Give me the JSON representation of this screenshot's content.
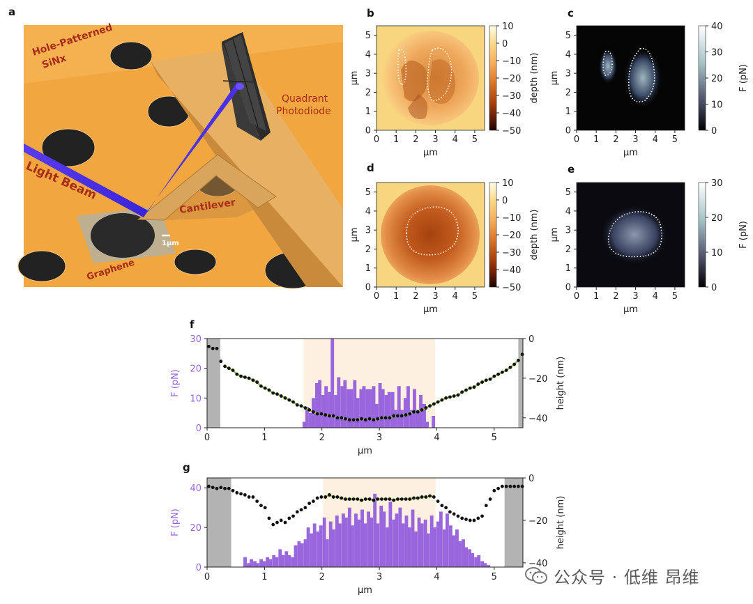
{
  "panels": {
    "a": {
      "letter": "a",
      "labels": {
        "substrate": [
          "Hole-Patterned",
          "SiNx"
        ],
        "photodiode": [
          "Quadrant",
          "Photodiode"
        ],
        "beam": "Light Beam",
        "cantilever": "Cantilever",
        "graphene": "Graphene",
        "scale": "1μm"
      }
    },
    "b": {
      "letter": "b",
      "colorbar_label": "depth (nm)",
      "colorbar_ticks": [
        "10",
        "0",
        "−10",
        "−20",
        "−30",
        "−40",
        "−50"
      ]
    },
    "c": {
      "letter": "c",
      "colorbar_label": "F (pN)",
      "colorbar_ticks": [
        "40",
        "30",
        "20",
        "10",
        "0"
      ]
    },
    "d": {
      "letter": "d",
      "colorbar_label": "depth (nm)",
      "colorbar_ticks": [
        "10",
        "0",
        "−10",
        "−20",
        "−30",
        "−40",
        "−50"
      ]
    },
    "e": {
      "letter": "e",
      "colorbar_label": "F (pN)",
      "colorbar_ticks": [
        "30",
        "20",
        "10",
        "0"
      ]
    },
    "f": {
      "letter": "f"
    },
    "g": {
      "letter": "g"
    }
  },
  "map_axes": {
    "unit": "μm",
    "ticks": [
      "0",
      "1",
      "2",
      "3",
      "4",
      "5"
    ]
  },
  "colors": {
    "force_purple": "#9966dd",
    "shade": "#fdf0e0",
    "edge_gray": "#b3b3b3",
    "fit_green": "#8bc34a"
  },
  "chart_data": [
    {
      "type": "bar",
      "panel": "f",
      "xlabel": "μm",
      "ylabel": "F (pN)",
      "y2label": "height (nm)",
      "xlim": [
        0,
        5.5
      ],
      "ylim": [
        0,
        30
      ],
      "y2lim": [
        -45,
        0
      ],
      "xticks": [
        0,
        1,
        2,
        3,
        4,
        5
      ],
      "yticks": [
        0,
        10,
        20,
        30
      ],
      "y2ticks": [
        0,
        -20,
        -40
      ],
      "shaded_region": [
        1.68,
        3.97
      ],
      "gray_edges": [
        [
          0,
          0.23
        ],
        [
          5.42,
          5.5
        ]
      ],
      "bar_width": 0.0555,
      "force_bars": {
        "x": [
          1.69,
          1.74,
          1.8,
          1.85,
          1.91,
          1.96,
          2.02,
          2.07,
          2.13,
          2.18,
          2.24,
          2.29,
          2.35,
          2.4,
          2.46,
          2.51,
          2.57,
          2.62,
          2.68,
          2.73,
          2.79,
          2.84,
          2.9,
          2.95,
          3.01,
          3.06,
          3.12,
          3.17,
          3.23,
          3.28,
          3.34,
          3.39,
          3.45,
          3.5,
          3.56,
          3.61,
          3.67,
          3.72,
          3.78,
          3.83,
          3.89,
          3.94
        ],
        "values": [
          2,
          7,
          5,
          10,
          15,
          16,
          11,
          14,
          12,
          30,
          11,
          17,
          14,
          16,
          13,
          13,
          16,
          10,
          13,
          14,
          13,
          13,
          14,
          8,
          15,
          13,
          11,
          12,
          12,
          6,
          14,
          6,
          10,
          14,
          6,
          13,
          6,
          11,
          8,
          2,
          0,
          4
        ]
      },
      "height_points": {
        "x": [
          0.03,
          0.1,
          0.17,
          0.24,
          0.31,
          0.38,
          0.45,
          0.52,
          0.59,
          0.66,
          0.73,
          0.8,
          0.87,
          0.94,
          1.01,
          1.08,
          1.15,
          1.22,
          1.29,
          1.36,
          1.43,
          1.5,
          1.57,
          1.64,
          1.71,
          1.78,
          1.85,
          1.92,
          1.99,
          2.06,
          2.13,
          2.2,
          2.27,
          2.34,
          2.41,
          2.48,
          2.55,
          2.62,
          2.69,
          2.76,
          2.83,
          2.9,
          2.97,
          3.04,
          3.11,
          3.18,
          3.25,
          3.32,
          3.39,
          3.46,
          3.53,
          3.6,
          3.67,
          3.74,
          3.81,
          3.88,
          3.95,
          4.02,
          4.09,
          4.16,
          4.23,
          4.3,
          4.37,
          4.44,
          4.51,
          4.58,
          4.65,
          4.72,
          4.79,
          4.86,
          4.93,
          5.0,
          5.07,
          5.14,
          5.21,
          5.28,
          5.35,
          5.42,
          5.49
        ],
        "values": [
          -4,
          -5,
          -5,
          -11.5,
          -14,
          -15,
          -16,
          -18,
          -19,
          -19.5,
          -20,
          -21,
          -22,
          -24,
          -25,
          -26,
          -27.5,
          -28,
          -29,
          -30,
          -31,
          -32,
          -33.5,
          -34,
          -35,
          -36,
          -37,
          -38,
          -38,
          -38.5,
          -39,
          -39,
          -40,
          -40,
          -40.5,
          -41,
          -41,
          -41,
          -40.5,
          -41,
          -40.5,
          -41,
          -40.5,
          -40,
          -40,
          -40,
          -39,
          -39,
          -39,
          -38.5,
          -38,
          -37,
          -37,
          -36,
          -35,
          -34,
          -33,
          -32,
          -31,
          -30,
          -29.5,
          -29,
          -28.5,
          -27,
          -26,
          -25,
          -24.5,
          -23,
          -22,
          -21,
          -20.5,
          -19,
          -18,
          -17,
          -16,
          -14.5,
          -13,
          -11,
          -8
        ]
      }
    },
    {
      "type": "bar",
      "panel": "g",
      "xlabel": "μm",
      "ylabel": "F (pN)",
      "y2label": "height (nm)",
      "xlim": [
        0,
        5.5
      ],
      "ylim": [
        0,
        45
      ],
      "y2lim": [
        -42,
        0
      ],
      "xticks": [
        0,
        1,
        2,
        3,
        4,
        5
      ],
      "yticks": [
        0,
        20,
        40
      ],
      "y2ticks": [
        0,
        -20,
        -40
      ],
      "shaded_region": [
        2.02,
        3.98
      ],
      "gray_edges": [
        [
          0,
          0.42
        ],
        [
          5.18,
          5.5
        ]
      ],
      "bar_width": 0.055,
      "force_bars": {
        "x": [
          0.66,
          0.72,
          0.77,
          0.83,
          0.88,
          0.94,
          0.99,
          1.05,
          1.1,
          1.16,
          1.21,
          1.27,
          1.32,
          1.38,
          1.43,
          1.49,
          1.54,
          1.6,
          1.65,
          1.71,
          1.76,
          1.82,
          1.87,
          1.93,
          1.98,
          2.04,
          2.09,
          2.15,
          2.2,
          2.26,
          2.31,
          2.37,
          2.42,
          2.48,
          2.53,
          2.59,
          2.64,
          2.7,
          2.75,
          2.81,
          2.86,
          2.92,
          2.97,
          3.03,
          3.08,
          3.14,
          3.19,
          3.25,
          3.3,
          3.36,
          3.41,
          3.47,
          3.52,
          3.58,
          3.63,
          3.69,
          3.74,
          3.8,
          3.85,
          3.91,
          3.96,
          4.02,
          4.07,
          4.13,
          4.18,
          4.24,
          4.29,
          4.35,
          4.4,
          4.46,
          4.51,
          4.57,
          4.62,
          4.68,
          4.73,
          4.79,
          4.84,
          4.9
        ],
        "values": [
          5,
          2,
          4,
          3,
          2,
          4,
          3,
          5,
          4,
          6,
          5,
          9,
          6,
          8,
          6,
          5,
          11,
          13,
          12,
          14,
          20,
          17,
          22,
          18,
          21,
          25,
          14,
          23,
          19,
          26,
          22,
          27,
          25,
          30,
          21,
          27,
          24,
          29,
          22,
          28,
          25,
          37,
          22,
          31,
          28,
          20,
          33,
          24,
          27,
          30,
          22,
          26,
          20,
          29,
          18,
          25,
          22,
          24,
          17,
          26,
          20,
          23,
          28,
          19,
          27,
          21,
          16,
          19,
          13,
          14,
          10,
          9,
          7,
          5,
          6,
          3,
          2,
          1
        ]
      },
      "height_points": {
        "x": [
          0.03,
          0.1,
          0.17,
          0.24,
          0.31,
          0.38,
          0.45,
          0.52,
          0.59,
          0.66,
          0.73,
          0.8,
          0.87,
          0.94,
          1.01,
          1.08,
          1.15,
          1.22,
          1.29,
          1.36,
          1.43,
          1.5,
          1.57,
          1.64,
          1.71,
          1.78,
          1.85,
          1.92,
          1.99,
          2.06,
          2.13,
          2.2,
          2.27,
          2.34,
          2.41,
          2.48,
          2.55,
          2.62,
          2.69,
          2.76,
          2.83,
          2.9,
          2.97,
          3.04,
          3.11,
          3.18,
          3.25,
          3.32,
          3.39,
          3.46,
          3.53,
          3.6,
          3.67,
          3.74,
          3.81,
          3.88,
          3.95,
          4.02,
          4.09,
          4.16,
          4.23,
          4.3,
          4.37,
          4.44,
          4.51,
          4.58,
          4.65,
          4.72,
          4.79,
          4.86,
          4.93,
          5.0,
          5.07,
          5.14,
          5.21,
          5.28,
          5.35,
          5.42,
          5.49
        ],
        "values": [
          -4,
          -4.5,
          -5,
          -4.5,
          -5,
          -5,
          -6,
          -7,
          -7.5,
          -8,
          -9,
          -9,
          -11,
          -13,
          -14,
          -19,
          -22,
          -21,
          -20,
          -21,
          -19,
          -18,
          -16,
          -15,
          -14,
          -12,
          -11,
          -9.5,
          -9,
          -9,
          -8,
          -9,
          -9,
          -9.5,
          -10,
          -10,
          -10,
          -10,
          -10.5,
          -10,
          -10,
          -10.5,
          -10,
          -10,
          -10,
          -10,
          -10.5,
          -10,
          -10,
          -10,
          -10,
          -9.5,
          -9.5,
          -9,
          -9,
          -8.5,
          -9,
          -11,
          -13,
          -14,
          -16,
          -17,
          -18,
          -19,
          -19.5,
          -20,
          -20,
          -19,
          -18,
          -13,
          -10,
          -6,
          -5,
          -4,
          -4,
          -4,
          -4,
          -4,
          -4
        ]
      }
    }
  ],
  "watermark": {
    "text": "公众号 · 低维 昂维",
    "icon": "wechat-icon"
  }
}
